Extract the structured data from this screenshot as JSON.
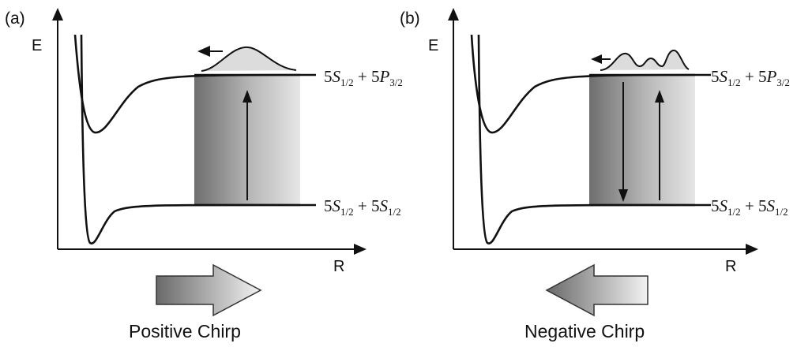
{
  "panels": [
    {
      "tag": "(a)",
      "y_axis": "E",
      "x_axis": "R",
      "upper_state": {
        "base": "5",
        "t1": "S",
        "s1": "1/2",
        "plus": " + 5",
        "t2": "P",
        "s2": "3/2"
      },
      "lower_state": {
        "base": "5",
        "t1": "S",
        "s1": "1/2",
        "plus": " + 5",
        "t2": "S",
        "s2": "1/2"
      },
      "chirp_label": "Positive Chirp"
    },
    {
      "tag": "(b)",
      "y_axis": "E",
      "x_axis": "R",
      "upper_state": {
        "base": "5",
        "t1": "S",
        "s1": "1/2",
        "plus": " + 5",
        "t2": "P",
        "s2": "3/2"
      },
      "lower_state": {
        "base": "5",
        "t1": "S",
        "s1": "1/2",
        "plus": " + 5",
        "t2": "S",
        "s2": "1/2"
      },
      "chirp_label": "Negative Chirp"
    }
  ]
}
